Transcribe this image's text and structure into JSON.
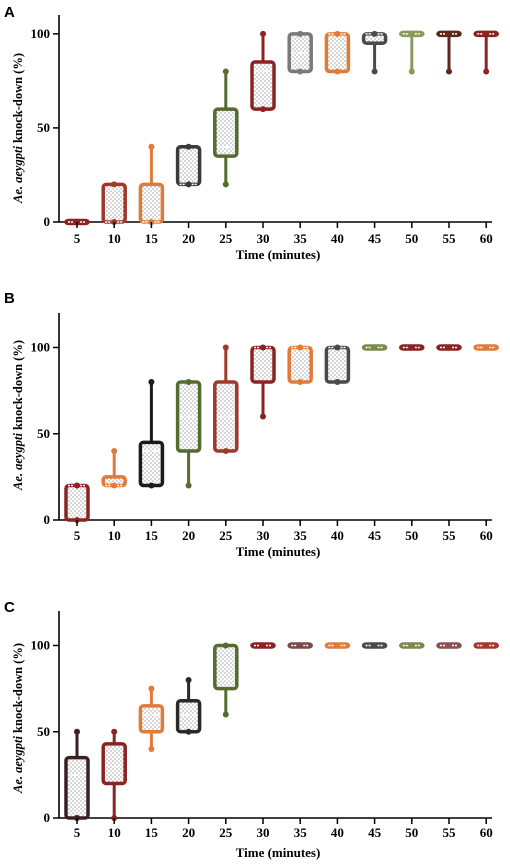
{
  "chart_data": [
    {
      "type": "box",
      "panel": "A",
      "categories": [
        "5",
        "10",
        "15",
        "20",
        "25",
        "30",
        "35",
        "40",
        "45",
        "50",
        "55",
        "60"
      ],
      "xlabel": "Time (minutes)",
      "ylabel_italic": "Ae. aeygpti",
      "ylabel_rest": " knock-down (%)",
      "ylim": [
        0,
        110
      ],
      "yticks": [
        "0",
        "50",
        "100"
      ],
      "colors": [
        "#8B2323",
        "#A0392B",
        "#E07B39",
        "#3A3A3A",
        "#556B2F",
        "#8B2323",
        "#7A7A7A",
        "#E07B39",
        "#4A4A4A",
        "#8A9A5B",
        "#5C2A1A",
        "#8B2323"
      ],
      "boxes": [
        {
          "min": 0,
          "q1": 0,
          "median": 0,
          "q3": 0,
          "max": 0
        },
        {
          "min": 0,
          "q1": 0,
          "median": 0,
          "q3": 20,
          "max": 20
        },
        {
          "min": 0,
          "q1": 0,
          "median": 0,
          "q3": 20,
          "max": 40
        },
        {
          "min": 20,
          "q1": 20,
          "median": 20,
          "q3": 40,
          "max": 40
        },
        {
          "min": 20,
          "q1": 35,
          "median": 40,
          "q3": 60,
          "max": 80
        },
        {
          "min": 60,
          "q1": 60,
          "median": 80,
          "q3": 85,
          "max": 100
        },
        {
          "min": 80,
          "q1": 80,
          "median": 90,
          "q3": 100,
          "max": 100
        },
        {
          "min": 80,
          "q1": 80,
          "median": 100,
          "q3": 100,
          "max": 100
        },
        {
          "min": 80,
          "q1": 95,
          "median": 100,
          "q3": 100,
          "max": 100
        },
        {
          "min": 80,
          "q1": 100,
          "median": 100,
          "q3": 100,
          "max": 100
        },
        {
          "min": 80,
          "q1": 100,
          "median": 100,
          "q3": 100,
          "max": 100
        },
        {
          "min": 80,
          "q1": 100,
          "median": 100,
          "q3": 100,
          "max": 100
        }
      ]
    },
    {
      "type": "box",
      "panel": "B",
      "categories": [
        "5",
        "10",
        "15",
        "20",
        "25",
        "30",
        "35",
        "40",
        "45",
        "50",
        "55",
        "60"
      ],
      "xlabel": "Time (minutes)",
      "ylabel_italic": "Ae. aeygpti",
      "ylabel_rest": " knock-down (%)",
      "ylim": [
        0,
        120
      ],
      "yticks": [
        "0",
        "50",
        "100"
      ],
      "colors": [
        "#8B2323",
        "#E07B39",
        "#1A1A1A",
        "#556B2F",
        "#A0392B",
        "#8B2323",
        "#E07B39",
        "#4A4A4A",
        "#7A8A4A",
        "#8B2323",
        "#8B2323",
        "#E07B39"
      ],
      "boxes": [
        {
          "min": 0,
          "q1": 0,
          "median": 20,
          "q3": 20,
          "max": 20
        },
        {
          "min": 20,
          "q1": 20,
          "median": 20,
          "q3": 25,
          "max": 40
        },
        {
          "min": 20,
          "q1": 20,
          "median": 40,
          "q3": 45,
          "max": 80
        },
        {
          "min": 20,
          "q1": 40,
          "median": 60,
          "q3": 80,
          "max": 80
        },
        {
          "min": 40,
          "q1": 40,
          "median": 60,
          "q3": 80,
          "max": 100
        },
        {
          "min": 60,
          "q1": 80,
          "median": 100,
          "q3": 100,
          "max": 100
        },
        {
          "min": 80,
          "q1": 80,
          "median": 100,
          "q3": 100,
          "max": 100
        },
        {
          "min": 80,
          "q1": 80,
          "median": 100,
          "q3": 100,
          "max": 100
        },
        {
          "min": 100,
          "q1": 100,
          "median": 100,
          "q3": 100,
          "max": 100
        },
        {
          "min": 100,
          "q1": 100,
          "median": 100,
          "q3": 100,
          "max": 100
        },
        {
          "min": 100,
          "q1": 100,
          "median": 100,
          "q3": 100,
          "max": 100
        },
        {
          "min": 100,
          "q1": 100,
          "median": 100,
          "q3": 100,
          "max": 100
        }
      ]
    },
    {
      "type": "box",
      "panel": "C",
      "categories": [
        "5",
        "10",
        "15",
        "20",
        "25",
        "30",
        "35",
        "40",
        "45",
        "50",
        "55",
        "60"
      ],
      "xlabel": "Time (minutes)",
      "ylabel_italic": "Ae. aeygpti",
      "ylabel_rest": " knock-down (%)",
      "ylim": [
        0,
        120
      ],
      "yticks": [
        "0",
        "50",
        "100"
      ],
      "colors": [
        "#3A2020",
        "#8B2323",
        "#E07B39",
        "#2A2A2A",
        "#556B2F",
        "#8B2323",
        "#7A4A4A",
        "#E07B39",
        "#4A4A4A",
        "#7A8A4A",
        "#8B5050",
        "#A0392B"
      ],
      "boxes": [
        {
          "min": 0,
          "q1": 0,
          "median": 25,
          "q3": 35,
          "max": 50
        },
        {
          "min": 0,
          "q1": 20,
          "median": 30,
          "q3": 43,
          "max": 50
        },
        {
          "min": 40,
          "q1": 50,
          "median": 60,
          "q3": 65,
          "max": 75
        },
        {
          "min": 50,
          "q1": 50,
          "median": 60,
          "q3": 68,
          "max": 80
        },
        {
          "min": 60,
          "q1": 75,
          "median": 80,
          "q3": 100,
          "max": 100
        },
        {
          "min": 100,
          "q1": 100,
          "median": 100,
          "q3": 100,
          "max": 100
        },
        {
          "min": 100,
          "q1": 100,
          "median": 100,
          "q3": 100,
          "max": 100
        },
        {
          "min": 100,
          "q1": 100,
          "median": 100,
          "q3": 100,
          "max": 100
        },
        {
          "min": 100,
          "q1": 100,
          "median": 100,
          "q3": 100,
          "max": 100
        },
        {
          "min": 100,
          "q1": 100,
          "median": 100,
          "q3": 100,
          "max": 100
        },
        {
          "min": 100,
          "q1": 100,
          "median": 100,
          "q3": 100,
          "max": 100
        },
        {
          "min": 100,
          "q1": 100,
          "median": 100,
          "q3": 100,
          "max": 100
        }
      ]
    }
  ]
}
